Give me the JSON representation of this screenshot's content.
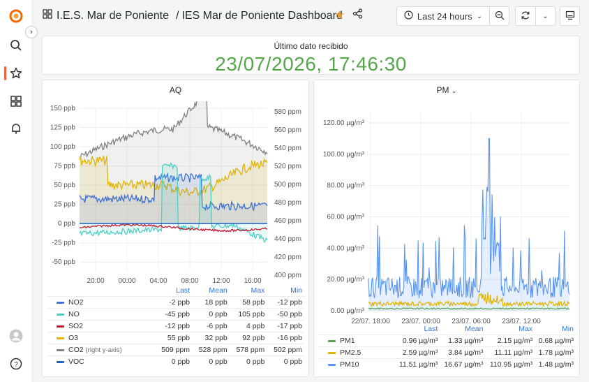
{
  "breadcrumb": {
    "folder": "I.E.S. Mar de Poniente",
    "separator": "/",
    "dashboard": "IES Mar de Poniente Dashboard"
  },
  "toolbar": {
    "time_range": "Last 24 hours"
  },
  "stat_panel": {
    "title": "Último dato recibido",
    "value": "23/07/2026, 17:46:30",
    "color": "#56a64b"
  },
  "aq_panel": {
    "title": "AQ",
    "y_left_ticks": [
      "150 ppb",
      "125 ppb",
      "100 ppb",
      "75 ppb",
      "50 ppb",
      "25 ppb",
      "0 ppb",
      "-25 ppb",
      "-50 ppb"
    ],
    "y_right_ticks": [
      "580 ppm",
      "560 ppm",
      "540 ppm",
      "520 ppm",
      "500 ppm",
      "480 ppm",
      "460 ppm",
      "440 ppm",
      "420 ppm",
      "400 ppm"
    ],
    "x_ticks": [
      "20:00",
      "00:00",
      "04:00",
      "08:00",
      "12:00",
      "16:00"
    ],
    "legend_headers": [
      "Last",
      "Mean",
      "Max",
      "Min"
    ],
    "legend": [
      {
        "name": "NO2",
        "color": "#3d71d9",
        "last": "-2 ppb",
        "mean": "18 ppb",
        "max": "58 ppb",
        "min": "-12 ppb"
      },
      {
        "name": "NO",
        "color": "#4ecdc4",
        "last": "-45 ppb",
        "mean": "0 ppb",
        "max": "105 ppb",
        "min": "-50 ppb"
      },
      {
        "name": "SO2",
        "color": "#c4162a",
        "last": "-12 ppb",
        "mean": "-6 ppb",
        "max": "4 ppb",
        "min": "-17 ppb"
      },
      {
        "name": "O3",
        "color": "#e0b400",
        "last": "55 ppb",
        "mean": "32 ppb",
        "max": "92 ppb",
        "min": "-16 ppb"
      },
      {
        "name": "CO2",
        "suffix": "(right y-axis)",
        "color": "#808080",
        "last": "509 ppm",
        "mean": "528 ppm",
        "max": "578 ppm",
        "min": "502 ppm"
      },
      {
        "name": "VOC",
        "color": "#1f60c4",
        "last": "0 ppb",
        "mean": "0 ppb",
        "max": "0 ppb",
        "min": "0 ppb"
      }
    ]
  },
  "pm_panel": {
    "title": "PM",
    "y_ticks": [
      "120.00 µg/m³",
      "100.00 µg/m³",
      "80.00 µg/m³",
      "60.00 µg/m³",
      "40.00 µg/m³",
      "20.00 µg/m³",
      "0.00 µg/m³"
    ],
    "x_ticks": [
      "22/07. 18:00",
      "23/07. 00:00",
      "23/07. 06:00",
      "23/07. 12:00"
    ],
    "legend_headers": [
      "Last",
      "Mean",
      "Max",
      "Min"
    ],
    "legend": [
      {
        "name": "PM1",
        "color": "#56a64b",
        "last": "0.96 µg/m³",
        "mean": "1.33 µg/m³",
        "max": "2.15 µg/m³",
        "min": "0.68 µg/m³"
      },
      {
        "name": "PM2.5",
        "color": "#e0b400",
        "last": "2.59 µg/m³",
        "mean": "3.84 µg/m³",
        "max": "11.11 µg/m³",
        "min": "1.78 µg/m³"
      },
      {
        "name": "PM10",
        "color": "#5794f2",
        "last": "11.51 µg/m³",
        "mean": "16.67 µg/m³",
        "max": "110.95 µg/m³",
        "min": "1.48 µg/m³"
      }
    ]
  }
}
